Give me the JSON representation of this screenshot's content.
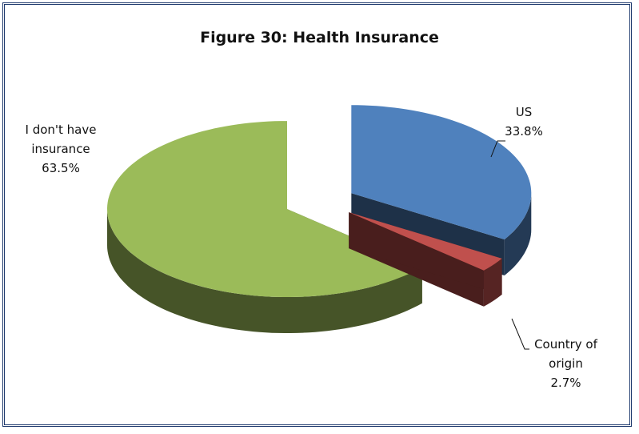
{
  "chart_data": {
    "type": "pie",
    "title": "Figure 30: Health Insurance",
    "categories": [
      "US",
      "Country of origin",
      "I don't have insurance"
    ],
    "values": [
      33.8,
      2.7,
      63.5
    ],
    "value_labels": [
      "33.8%",
      "2.7%",
      "63.5%"
    ],
    "colors": [
      "#4f81bd",
      "#c0504d",
      "#9bbb59"
    ]
  }
}
